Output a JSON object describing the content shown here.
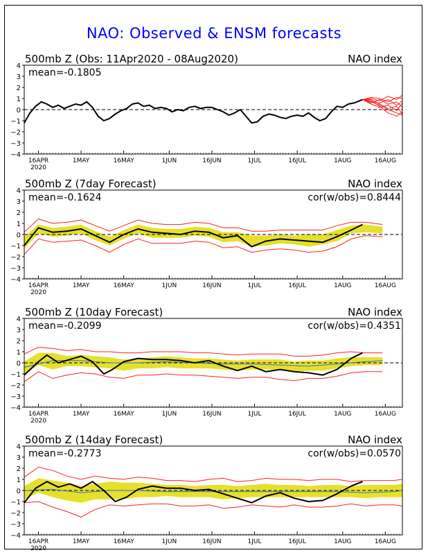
{
  "title": "NAO: Observed & ENSM forecasts",
  "colors": {
    "observed": "#000000",
    "ensemble_spread": "#e6e02a",
    "ensemble_bounds": "#ff2020",
    "ensemble_mean": "#2a6fd6",
    "zero_line": "#000000",
    "title": "#0000ff"
  },
  "x_ticks": [
    {
      "label": "16APR",
      "sub": "2020",
      "day": 5
    },
    {
      "label": "1MAY",
      "sub": "",
      "day": 20
    },
    {
      "label": "16MAY",
      "sub": "",
      "day": 35
    },
    {
      "label": "1JUN",
      "sub": "",
      "day": 51
    },
    {
      "label": "16JUN",
      "sub": "",
      "day": 66
    },
    {
      "label": "1JUL",
      "sub": "",
      "day": 81
    },
    {
      "label": "16JUL",
      "sub": "",
      "day": 96
    },
    {
      "label": "1AUG",
      "sub": "",
      "day": 112
    },
    {
      "label": "16AUG",
      "sub": "",
      "day": 127
    }
  ],
  "chart_data": [
    {
      "type": "line",
      "title_left": "500mb Z (Obs: 11Apr2020 - 08Aug2020)",
      "title_right": "NAO index",
      "stat_left": "mean=-0.1805",
      "stat_right": "",
      "ylim": [
        -4,
        4
      ],
      "yticks": [
        4,
        3,
        2,
        1,
        0,
        -1,
        -2,
        -3,
        -4
      ],
      "xlim": [
        0,
        133
      ],
      "observed": {
        "x": [
          0,
          2,
          4,
          6,
          8,
          10,
          12,
          14,
          16,
          18,
          20,
          22,
          24,
          26,
          28,
          30,
          32,
          34,
          36,
          38,
          40,
          42,
          44,
          46,
          48,
          50,
          52,
          54,
          56,
          58,
          60,
          62,
          64,
          66,
          68,
          70,
          72,
          74,
          76,
          78,
          80,
          82,
          84,
          86,
          88,
          90,
          92,
          94,
          96,
          98,
          100,
          102,
          104,
          106,
          108,
          110,
          112,
          114,
          116,
          119
        ],
        "y": [
          -1.2,
          -0.3,
          0.3,
          0.7,
          0.5,
          0.2,
          0.4,
          0.1,
          0.3,
          0.5,
          0.4,
          0.7,
          0.2,
          -0.6,
          -1.0,
          -0.8,
          -0.4,
          -0.1,
          0.1,
          0.5,
          0.6,
          0.3,
          0.4,
          0.1,
          0.2,
          0.1,
          -0.2,
          0.0,
          -0.1,
          0.2,
          0.3,
          0.1,
          0.2,
          0.2,
          0.0,
          -0.2,
          -0.5,
          -0.3,
          0.0,
          -0.6,
          -1.2,
          -1.1,
          -0.6,
          -0.4,
          -0.5,
          -0.7,
          -0.8,
          -0.6,
          -0.5,
          -0.6,
          -0.3,
          -0.7,
          -1.0,
          -0.8,
          -0.2,
          0.3,
          0.2,
          0.5,
          0.6,
          0.9
        ]
      },
      "forecast_members": [
        {
          "x": [
            119,
            122,
            125,
            128,
            131,
            133
          ],
          "y": [
            0.9,
            0.7,
            0.4,
            0.0,
            -0.3,
            -0.5
          ]
        },
        {
          "x": [
            119,
            122,
            125,
            128,
            131,
            133
          ],
          "y": [
            0.9,
            1.0,
            0.8,
            1.2,
            0.9,
            1.3
          ]
        },
        {
          "x": [
            119,
            122,
            125,
            128,
            131,
            133
          ],
          "y": [
            0.9,
            0.6,
            0.9,
            0.5,
            0.7,
            0.2
          ]
        },
        {
          "x": [
            119,
            122,
            125,
            128,
            131,
            133
          ],
          "y": [
            0.9,
            0.8,
            0.3,
            -0.3,
            -0.6,
            -0.2
          ]
        },
        {
          "x": [
            119,
            122,
            125,
            128,
            131,
            133
          ],
          "y": [
            0.9,
            1.1,
            1.0,
            0.7,
            1.1,
            1.0
          ]
        },
        {
          "x": [
            119,
            122,
            125,
            128,
            131,
            133
          ],
          "y": [
            0.9,
            0.5,
            0.2,
            0.4,
            -0.1,
            0.6
          ]
        },
        {
          "x": [
            119,
            122,
            125,
            128,
            131,
            133
          ],
          "y": [
            0.9,
            0.7,
            0.6,
            0.9,
            0.4,
            0.8
          ]
        },
        {
          "x": [
            119,
            122,
            125,
            128,
            131,
            133
          ],
          "y": [
            0.9,
            0.9,
            0.5,
            0.1,
            0.3,
            -0.4
          ]
        }
      ]
    },
    {
      "type": "line",
      "title_left": "500mb Z (7day Forecast)",
      "title_right": "NAO index",
      "stat_left": "mean=-0.1624",
      "stat_right": "cor(w/obs)=0.8444",
      "ylim": [
        -4,
        4
      ],
      "yticks": [
        4,
        3,
        2,
        1,
        0,
        -1,
        -2,
        -3,
        -4
      ],
      "xlim": [
        0,
        133
      ],
      "band_x": [
        0,
        5,
        10,
        15,
        20,
        25,
        30,
        35,
        40,
        45,
        50,
        55,
        60,
        65,
        70,
        75,
        80,
        85,
        90,
        95,
        100,
        105,
        110,
        115,
        120,
        126
      ],
      "spread_upper": [
        -0.2,
        0.9,
        0.6,
        0.7,
        0.9,
        0.3,
        -0.2,
        0.4,
        0.9,
        0.6,
        0.5,
        0.5,
        0.7,
        0.6,
        0.2,
        0.2,
        -0.1,
        -0.1,
        0.0,
        -0.1,
        0.0,
        0.0,
        0.4,
        0.8,
        0.9,
        0.7
      ],
      "spread_lower": [
        -1.3,
        0.1,
        -0.2,
        -0.1,
        0.1,
        -0.5,
        -1.0,
        -0.4,
        0.1,
        -0.3,
        -0.3,
        -0.3,
        -0.1,
        -0.2,
        -0.7,
        -0.6,
        -1.1,
        -1.0,
        -0.8,
        -0.9,
        -1.1,
        -0.9,
        -0.6,
        0.1,
        0.2,
        0.1
      ],
      "bound_upper": [
        0.2,
        1.4,
        1.0,
        1.1,
        1.3,
        0.8,
        0.3,
        0.8,
        1.3,
        1.0,
        0.9,
        0.9,
        1.1,
        1.0,
        0.6,
        0.6,
        0.3,
        0.3,
        0.4,
        0.4,
        0.4,
        0.4,
        0.8,
        1.1,
        1.1,
        0.9
      ],
      "bound_lower": [
        -1.8,
        -0.4,
        -0.7,
        -0.6,
        -0.5,
        -1.0,
        -1.6,
        -0.9,
        -0.4,
        -0.8,
        -0.8,
        -0.8,
        -0.6,
        -0.7,
        -1.2,
        -1.1,
        -1.6,
        -1.4,
        -1.3,
        -1.4,
        -1.6,
        -1.5,
        -1.1,
        -0.4,
        -0.1,
        -0.2
      ],
      "observed": {
        "x": [
          0,
          5,
          10,
          15,
          20,
          25,
          30,
          35,
          40,
          45,
          50,
          55,
          60,
          65,
          70,
          75,
          80,
          85,
          90,
          95,
          100,
          105,
          110,
          115,
          119
        ],
        "y": [
          -1.0,
          0.6,
          0.2,
          0.3,
          0.5,
          -0.1,
          -0.7,
          0.0,
          0.5,
          0.2,
          0.1,
          0.0,
          0.3,
          0.2,
          -0.3,
          -0.1,
          -1.1,
          -0.6,
          -0.4,
          -0.5,
          -0.6,
          -0.7,
          -0.2,
          0.4,
          0.9
        ]
      }
    },
    {
      "type": "line",
      "title_left": "500mb Z (10day Forecast)",
      "title_right": "NAO index",
      "stat_left": "mean=-0.2099",
      "stat_right": "cor(w/obs)=0.4351",
      "ylim": [
        -4,
        4
      ],
      "yticks": [
        4,
        3,
        2,
        1,
        0,
        -1,
        -2,
        -3,
        -4
      ],
      "xlim": [
        0,
        133
      ],
      "band_x": [
        0,
        5,
        10,
        15,
        20,
        25,
        30,
        35,
        40,
        45,
        50,
        55,
        60,
        65,
        70,
        75,
        80,
        85,
        90,
        95,
        100,
        105,
        110,
        115,
        120,
        126
      ],
      "spread_upper": [
        0.1,
        0.9,
        0.9,
        0.6,
        0.7,
        0.6,
        0.5,
        0.3,
        0.4,
        0.5,
        0.6,
        0.5,
        0.4,
        0.4,
        0.3,
        0.2,
        0.3,
        0.3,
        0.3,
        0.1,
        0.2,
        0.2,
        0.4,
        0.5,
        0.5,
        0.5
      ],
      "spread_lower": [
        -1.0,
        -0.2,
        -0.6,
        -0.3,
        -0.3,
        -0.4,
        -0.5,
        -0.7,
        -0.5,
        -0.5,
        -0.4,
        -0.5,
        -0.5,
        -0.5,
        -0.6,
        -0.7,
        -0.6,
        -0.6,
        -0.6,
        -0.8,
        -0.7,
        -0.7,
        -0.5,
        -0.3,
        -0.2,
        -0.2
      ],
      "bound_upper": [
        0.8,
        1.4,
        1.3,
        1.1,
        1.2,
        1.0,
        1.0,
        0.9,
        0.9,
        1.0,
        1.0,
        1.0,
        0.9,
        0.9,
        0.8,
        0.7,
        0.8,
        0.8,
        0.8,
        0.6,
        0.6,
        0.7,
        0.9,
        1.0,
        0.9,
        0.9
      ],
      "bound_lower": [
        -1.7,
        -0.8,
        -1.4,
        -1.1,
        -0.9,
        -1.0,
        -1.3,
        -1.4,
        -1.1,
        -1.1,
        -1.0,
        -1.1,
        -1.1,
        -1.2,
        -1.3,
        -1.4,
        -1.3,
        -1.3,
        -1.5,
        -1.6,
        -1.4,
        -1.4,
        -1.2,
        -0.9,
        -0.8,
        -0.8
      ],
      "observed": {
        "x": [
          0,
          5,
          8,
          12,
          16,
          20,
          24,
          28,
          31,
          35,
          40,
          45,
          50,
          55,
          60,
          65,
          70,
          75,
          80,
          85,
          90,
          95,
          100,
          105,
          110,
          115,
          119
        ],
        "y": [
          -1.1,
          0.1,
          0.7,
          0.0,
          0.3,
          0.6,
          0.1,
          -1.0,
          -0.6,
          0.1,
          0.4,
          0.3,
          0.3,
          0.2,
          0.0,
          0.2,
          -0.3,
          -0.7,
          -0.3,
          -0.8,
          -0.6,
          -0.8,
          -0.9,
          -1.1,
          -0.6,
          0.4,
          0.9
        ]
      },
      "ensemble_mean": {
        "x": [
          0,
          10,
          20,
          30,
          40,
          50,
          60,
          70,
          80,
          90,
          100,
          110,
          120,
          126
        ],
        "y": [
          -0.4,
          0.2,
          0.2,
          0.0,
          0.0,
          0.1,
          0.0,
          -0.1,
          -0.1,
          -0.2,
          -0.3,
          -0.1,
          0.1,
          0.2
        ]
      }
    },
    {
      "type": "line",
      "title_left": "500mb Z (14day Forecast)",
      "title_right": "NAO index",
      "stat_left": "mean=-0.2773",
      "stat_right": "cor(w/obs)=0.0570",
      "ylim": [
        -4,
        4
      ],
      "yticks": [
        4,
        3,
        2,
        1,
        0,
        -1,
        -2,
        -3,
        -4
      ],
      "xlim": [
        0,
        133
      ],
      "band_x": [
        0,
        5,
        10,
        15,
        20,
        25,
        30,
        35,
        40,
        45,
        50,
        55,
        60,
        65,
        70,
        75,
        80,
        85,
        90,
        95,
        100,
        105,
        110,
        115,
        120,
        125,
        130,
        133
      ],
      "spread_upper": [
        0.4,
        1.1,
        0.9,
        0.7,
        0.4,
        0.6,
        0.8,
        0.7,
        0.7,
        0.6,
        0.5,
        0.5,
        0.4,
        0.5,
        0.5,
        0.4,
        0.5,
        0.6,
        0.5,
        0.5,
        0.4,
        0.5,
        0.5,
        0.4,
        0.5,
        0.5,
        0.5,
        0.6
      ],
      "spread_lower": [
        -0.8,
        -0.2,
        -0.6,
        -0.9,
        -1.1,
        -0.8,
        -0.8,
        -0.8,
        -0.6,
        -0.6,
        -0.5,
        -0.6,
        -0.6,
        -0.6,
        -0.8,
        -0.7,
        -0.6,
        -0.6,
        -0.6,
        -0.6,
        -0.6,
        -0.6,
        -0.6,
        -0.6,
        -0.7,
        -0.6,
        -0.6,
        -0.6
      ],
      "bound_upper": [
        1.2,
        2.1,
        1.8,
        1.3,
        1.0,
        1.3,
        1.1,
        1.0,
        1.2,
        1.1,
        0.9,
        0.9,
        0.8,
        1.0,
        1.1,
        0.8,
        0.9,
        1.1,
        1.0,
        1.0,
        0.9,
        1.0,
        1.0,
        0.8,
        0.9,
        0.9,
        0.9,
        1.0
      ],
      "bound_lower": [
        -1.1,
        -1.0,
        -1.5,
        -1.9,
        -2.4,
        -1.7,
        -1.3,
        -1.4,
        -1.3,
        -1.2,
        -1.2,
        -1.4,
        -1.4,
        -1.3,
        -1.6,
        -1.5,
        -1.3,
        -1.4,
        -1.5,
        -1.3,
        -1.5,
        -1.5,
        -1.4,
        -1.2,
        -1.4,
        -1.3,
        -1.3,
        -1.4
      ],
      "observed": {
        "x": [
          0,
          4,
          8,
          12,
          16,
          20,
          24,
          28,
          32,
          36,
          40,
          45,
          50,
          55,
          60,
          65,
          70,
          75,
          80,
          85,
          90,
          95,
          100,
          105,
          110,
          115,
          119
        ],
        "y": [
          -1.1,
          0.2,
          0.8,
          0.3,
          0.6,
          0.2,
          0.8,
          0.0,
          -1.0,
          -0.6,
          0.1,
          0.4,
          0.2,
          0.2,
          0.0,
          0.1,
          -0.3,
          -0.7,
          -1.1,
          -0.5,
          -0.2,
          -0.7,
          -1.0,
          -0.9,
          -0.3,
          0.4,
          0.8
        ]
      },
      "ensemble_mean": {
        "x": [
          0,
          10,
          20,
          30,
          40,
          50,
          60,
          70,
          80,
          90,
          100,
          110,
          120,
          130,
          133
        ],
        "y": [
          0.0,
          0.1,
          -0.2,
          0.0,
          0.0,
          -0.1,
          -0.1,
          -0.1,
          -0.1,
          -0.1,
          -0.1,
          -0.1,
          -0.2,
          -0.1,
          0.0
        ]
      }
    }
  ]
}
